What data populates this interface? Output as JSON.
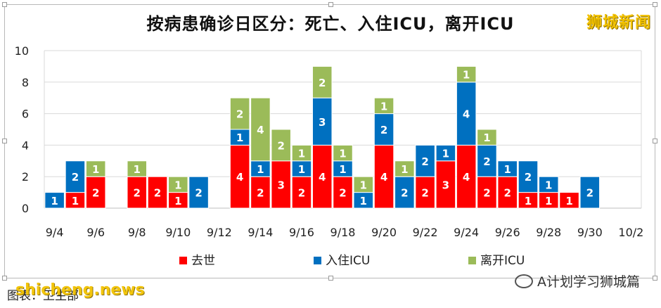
{
  "title": "按病患确诊日区分：死亡、入住ICU，离开ICU",
  "brand": "狮城新闻",
  "source": "图表：卫生部",
  "source_watermark": "shicheng.news",
  "wechat_account": "A计划学习狮城篇",
  "colors": {
    "death": "#ff0000",
    "icu_in": "#0070c0",
    "icu_out": "#9bbb59"
  },
  "chart_data": {
    "type": "bar",
    "stacked": true,
    "categories": [
      "9/4",
      "9/5",
      "9/6",
      "9/7",
      "9/8",
      "9/9",
      "9/10",
      "9/11",
      "9/12",
      "9/13",
      "9/14",
      "9/15",
      "9/16",
      "9/17",
      "9/18",
      "9/19",
      "9/20",
      "9/21",
      "9/22",
      "9/23",
      "9/24",
      "9/25",
      "9/26",
      "9/27",
      "9/28",
      "9/29",
      "9/30",
      "10/1",
      "10/2"
    ],
    "tick_labels": [
      "9/4",
      "9/6",
      "9/8",
      "9/10",
      "9/12",
      "9/14",
      "9/16",
      "9/18",
      "9/20",
      "9/22",
      "9/24",
      "9/26",
      "9/28",
      "9/30",
      "10/2"
    ],
    "yticks": [
      0,
      2,
      4,
      6,
      8,
      10
    ],
    "ylim": [
      0,
      10
    ],
    "grid": true,
    "legend_position": "bottom",
    "series": [
      {
        "name": "去世",
        "color_key": "death",
        "values": [
          0,
          1,
          2,
          0,
          2,
          2,
          1,
          0,
          0,
          4,
          2,
          3,
          2,
          4,
          2,
          0,
          4,
          0,
          2,
          3,
          4,
          2,
          2,
          1,
          1,
          1,
          0,
          0,
          0
        ]
      },
      {
        "name": "入住ICU",
        "color_key": "icu_in",
        "values": [
          1,
          2,
          0,
          0,
          0,
          0,
          0,
          2,
          0,
          1,
          1,
          0,
          1,
          3,
          1,
          1,
          2,
          2,
          2,
          1,
          4,
          2,
          1,
          2,
          1,
          0,
          2,
          0,
          0
        ]
      },
      {
        "name": "离开ICU",
        "color_key": "icu_out",
        "values": [
          0,
          0,
          1,
          0,
          1,
          0,
          1,
          0,
          0,
          2,
          4,
          2,
          1,
          2,
          1,
          1,
          1,
          1,
          0,
          0,
          1,
          1,
          0,
          0,
          0,
          0,
          0,
          0,
          0
        ]
      }
    ]
  }
}
